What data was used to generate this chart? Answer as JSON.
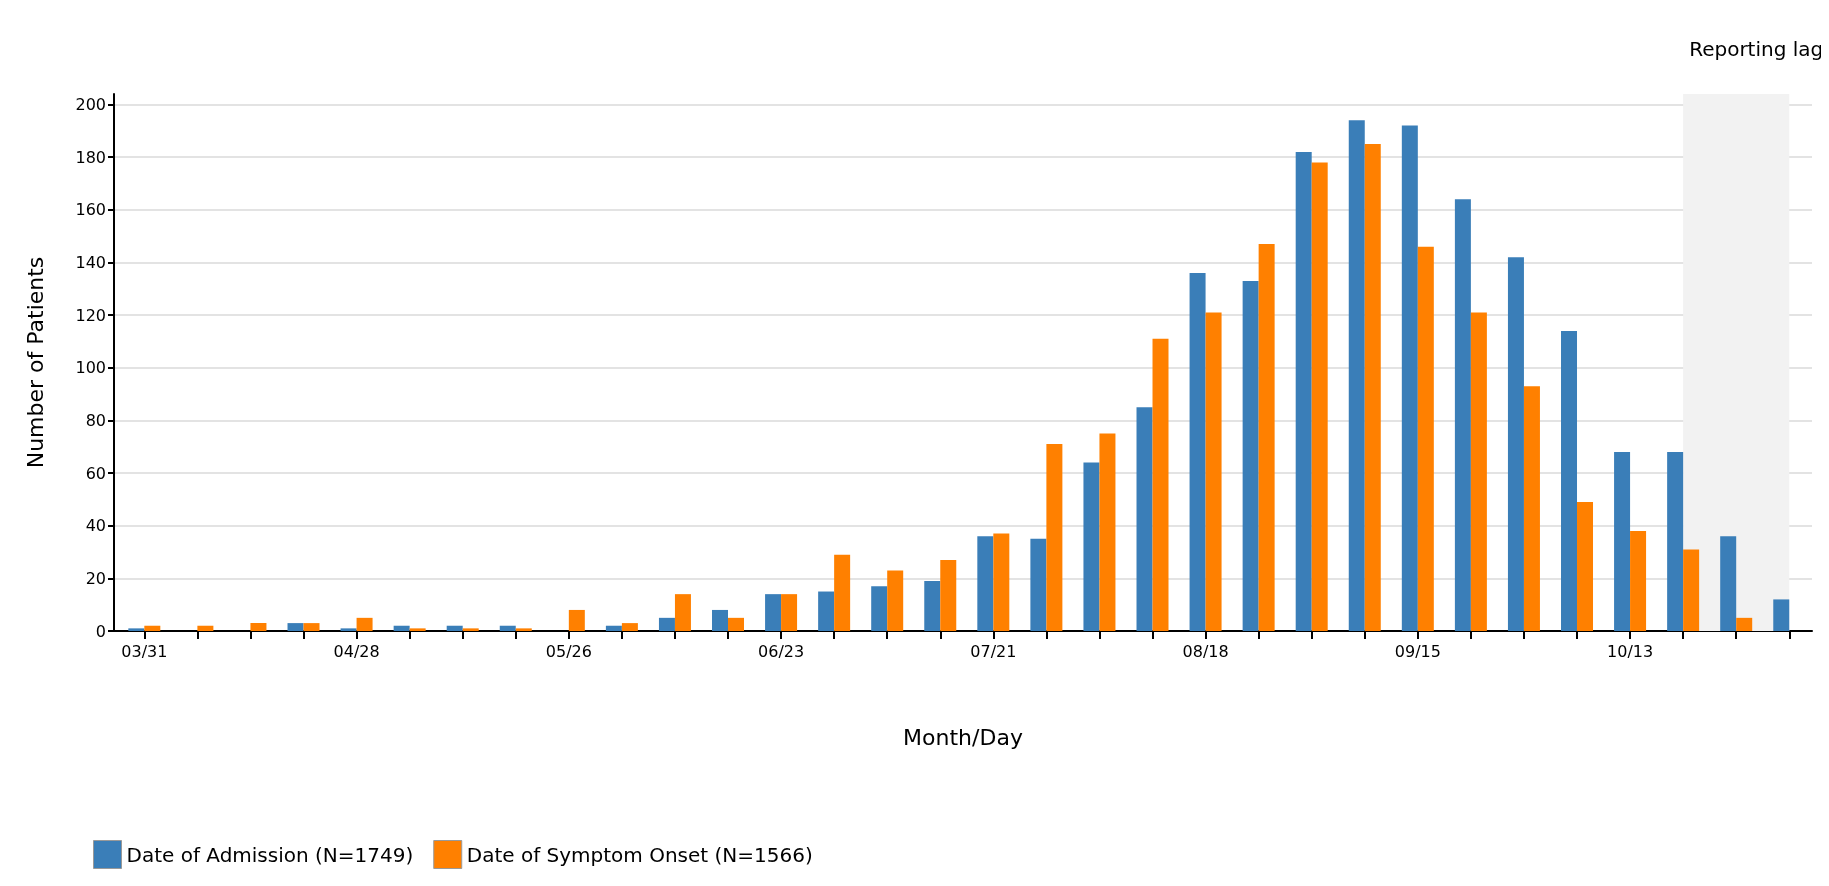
{
  "chart_data": {
    "type": "bar",
    "xlabel": "Month/Day",
    "ylabel": "Number of Patients",
    "x": [
      "--03-31",
      "--04-07",
      "--04-14",
      "--04-21",
      "--04-28",
      "--05-05",
      "--05-12",
      "--05-19",
      "--05-26",
      "--06-02",
      "--06-09",
      "--06-16",
      "--06-23",
      "--06-30",
      "--07-07",
      "--07-14",
      "--07-21",
      "--07-28",
      "--08-04",
      "--08-11",
      "--08-18",
      "--08-25",
      "--09-01",
      "--09-08",
      "--09-15",
      "--09-22",
      "--09-29",
      "--10-06",
      "--10-13",
      "--10-20",
      "--10-27",
      "--11-03"
    ],
    "series": [
      {
        "name": "Date of Admission (N=1749)",
        "color": "#3a7eb8",
        "values": [
          1,
          0,
          0,
          3,
          1,
          2,
          2,
          2,
          0,
          2,
          5,
          8,
          14,
          15,
          17,
          19,
          36,
          35,
          64,
          85,
          136,
          133,
          182,
          194,
          192,
          164,
          142,
          114,
          68,
          68,
          36,
          12
        ]
      },
      {
        "name": "Date of Symptom Onset (N=1566)",
        "color": "#ff8000",
        "values": [
          2,
          2,
          3,
          3,
          5,
          1,
          1,
          1,
          8,
          3,
          14,
          5,
          14,
          29,
          23,
          27,
          37,
          71,
          75,
          111,
          121,
          147,
          178,
          185,
          146,
          121,
          93,
          49,
          38,
          31,
          5,
          0
        ]
      }
    ],
    "xlim": [
      "--03-27",
      "--11-06"
    ],
    "xticks": [
      {
        "value": "--03-31",
        "label": "03/31"
      },
      {
        "value": "--04-07",
        "label": null
      },
      {
        "value": "--04-14",
        "label": null
      },
      {
        "value": "--04-21",
        "label": null
      },
      {
        "value": "--04-28",
        "label": "04/28"
      },
      {
        "value": "--05-05",
        "label": null
      },
      {
        "value": "--05-12",
        "label": null
      },
      {
        "value": "--05-19",
        "label": null
      },
      {
        "value": "--05-26",
        "label": "05/26"
      },
      {
        "value": "--06-02",
        "label": null
      },
      {
        "value": "--06-09",
        "label": null
      },
      {
        "value": "--06-16",
        "label": null
      },
      {
        "value": "--06-23",
        "label": "06/23"
      },
      {
        "value": "--06-30",
        "label": null
      },
      {
        "value": "--07-07",
        "label": null
      },
      {
        "value": "--07-14",
        "label": null
      },
      {
        "value": "--07-21",
        "label": "07/21"
      },
      {
        "value": "--07-28",
        "label": null
      },
      {
        "value": "--08-04",
        "label": null
      },
      {
        "value": "--08-11",
        "label": null
      },
      {
        "value": "--08-18",
        "label": "08/18"
      },
      {
        "value": "--08-25",
        "label": null
      },
      {
        "value": "--09-01",
        "label": null
      },
      {
        "value": "--09-08",
        "label": null
      },
      {
        "value": "--09-15",
        "label": "09/15"
      },
      {
        "value": "--09-22",
        "label": null
      },
      {
        "value": "--09-29",
        "label": null
      },
      {
        "value": "--10-06",
        "label": null
      },
      {
        "value": "--10-13",
        "label": "10/13"
      },
      {
        "value": "--10-20",
        "label": null
      },
      {
        "value": "--10-27",
        "label": null
      },
      {
        "value": "--11-03",
        "label": null
      }
    ],
    "ylim": [
      0,
      204
    ],
    "yticks": [
      0,
      20,
      40,
      60,
      80,
      100,
      120,
      140,
      160,
      180,
      200
    ],
    "bands": [
      {
        "axis": "x",
        "from": "--10-20",
        "to": "--11-03",
        "label": "Reporting lag",
        "color": "#f2f2f2"
      }
    ],
    "grid": "y",
    "legend": "bottom left"
  }
}
